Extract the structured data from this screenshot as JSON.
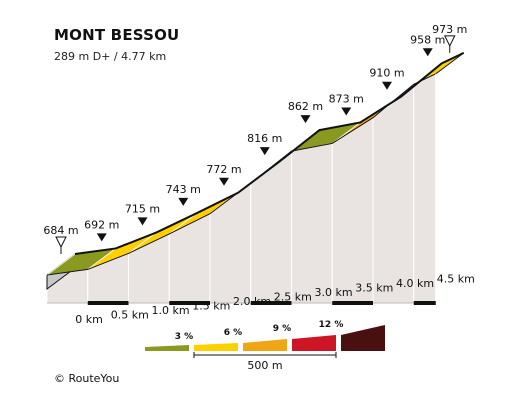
{
  "title": "MONT BESSOU",
  "subtitle": "289 m D+ / 4.77 km",
  "copyright": "©  RouteYou",
  "colors": {
    "outline": "#111111",
    "wall": "#e9e4e2",
    "side": "#c8c8c8",
    "grade_0_3": "#8a9a21",
    "grade_3_6": "#ffd000",
    "grade_6_9": "#f0a514",
    "grade_9_12": "#cc1625",
    "grade_12_plus": "#4a1010"
  },
  "chart_data": {
    "type": "area",
    "title": "MONT BESSOU",
    "subtitle": "289 m D+ / 4.77 km",
    "x_unit": "km",
    "y_unit": "m",
    "x_ticks": [
      "0 km",
      "0.5 km",
      "1.0 km",
      "1.5 km",
      "2.0 km",
      "2.5 km",
      "3.0 km",
      "3.5 km",
      "4.0 km",
      "4.5 km"
    ],
    "points": [
      {
        "x": 0.0,
        "elevation": 684,
        "label": "684 m",
        "marker": "start"
      },
      {
        "x": 0.5,
        "elevation": 692,
        "label": "692 m",
        "marker": "km"
      },
      {
        "x": 1.0,
        "elevation": 715,
        "label": "715 m",
        "marker": "km"
      },
      {
        "x": 1.5,
        "elevation": 743,
        "label": "743 m",
        "marker": "km"
      },
      {
        "x": 2.0,
        "elevation": 772,
        "label": "772 m",
        "marker": "km"
      },
      {
        "x": 2.5,
        "elevation": 816,
        "label": "816 m",
        "marker": "km"
      },
      {
        "x": 3.0,
        "elevation": 862,
        "label": "862 m",
        "marker": "km"
      },
      {
        "x": 3.5,
        "elevation": 873,
        "label": "873 m",
        "marker": "km"
      },
      {
        "x": 4.0,
        "elevation": 910,
        "label": "910 m",
        "marker": "km"
      },
      {
        "x": 4.5,
        "elevation": 958,
        "label": "958 m",
        "marker": "km"
      },
      {
        "x": 4.77,
        "elevation": 973,
        "label": "973 m",
        "marker": "end"
      }
    ],
    "segment_grade_class": [
      "grade_0_3",
      "grade_3_6",
      "grade_3_6",
      "grade_3_6",
      "grade_6_9",
      "grade_9_12",
      "grade_0_3",
      "grade_6_9",
      "grade_9_12",
      "grade_3_6"
    ],
    "legend": {
      "labels": [
        "3 %",
        "6 %",
        "9 %",
        "12 %"
      ],
      "classes": [
        "grade_0_3",
        "grade_3_6",
        "grade_6_9",
        "grade_9_12",
        "grade_12_plus"
      ],
      "scale_label": "500 m"
    }
  }
}
